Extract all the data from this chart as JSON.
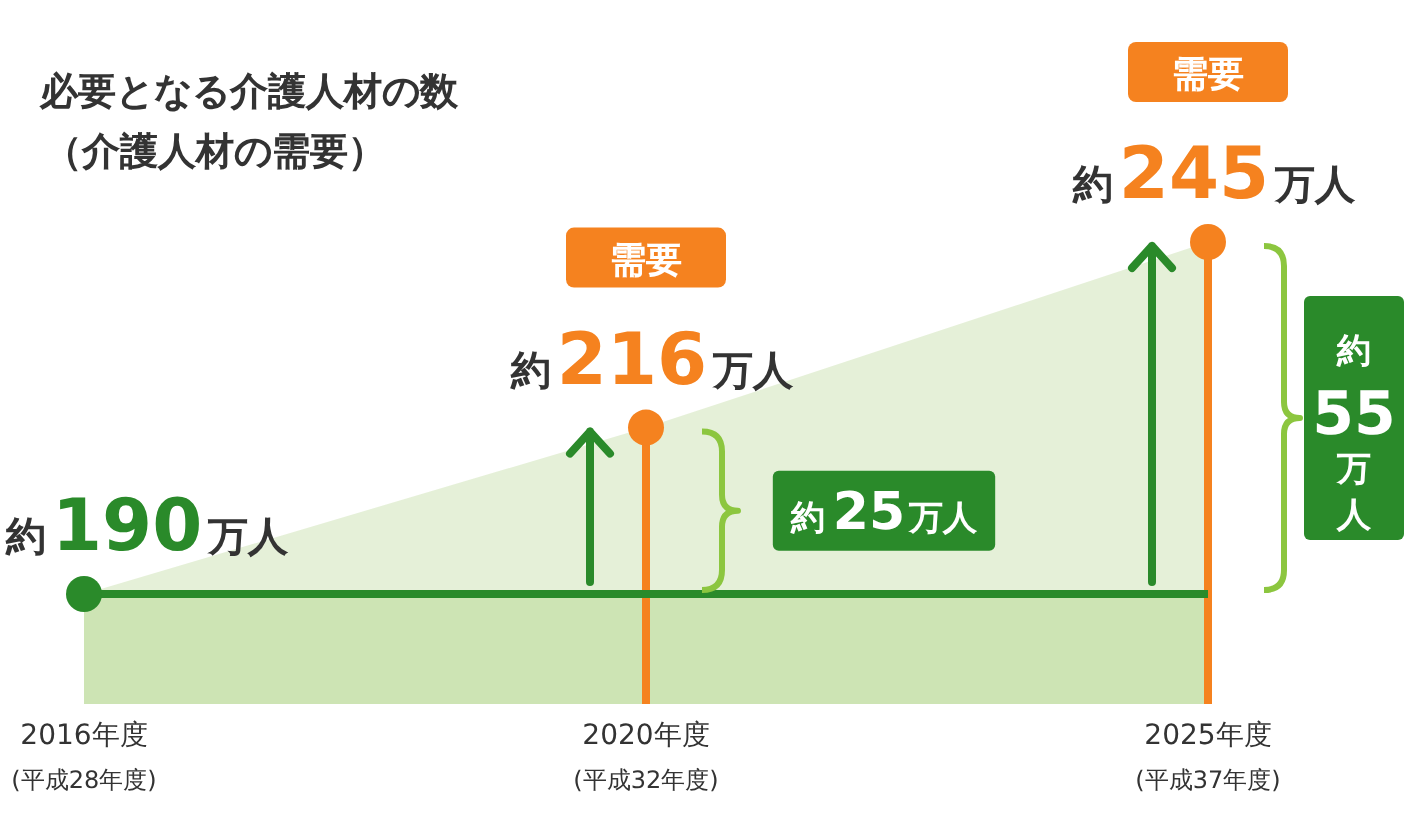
{
  "chart_data": {
    "type": "area",
    "title": "必要となる介護人材の数",
    "subtitle": "（介護人材の需要）",
    "categories": [
      "2016年度\n(平成28年度)",
      "2020年度\n(平成32年度)",
      "2025年度\n(平成37年度)"
    ],
    "series": [
      {
        "color": "#dcebcb",
        "colors": [
          "#2a8a2a",
          "#f5821f",
          "#f5821f"
        ],
        "marker": "circle",
        "values": [
          190,
          216,
          245
        ],
        "value_labels": [
          "約190万人",
          "約216万人",
          "約245万人"
        ]
      },
      {
        "type": "line",
        "color": "#2a8a2a",
        "values": [
          190,
          190,
          190
        ]
      }
    ],
    "tick_labels": "x",
    "ref_lines": [
      {
        "axis": "x",
        "value": "2020年度\n(平成32年度)",
        "color": "#f5821f"
      },
      {
        "axis": "x",
        "value": "2025年度\n(平成37年度)",
        "color": "#f5821f"
      }
    ],
    "annotations": [
      "需要",
      "需要",
      {
        "text": "約25万人",
        "x": "2020年度\n(平成32年度)",
        "y": 203
      },
      {
        "text": "約55万人",
        "x": "2025年度\n(平成37年度)",
        "y": 217.5
      }
    ]
  }
}
